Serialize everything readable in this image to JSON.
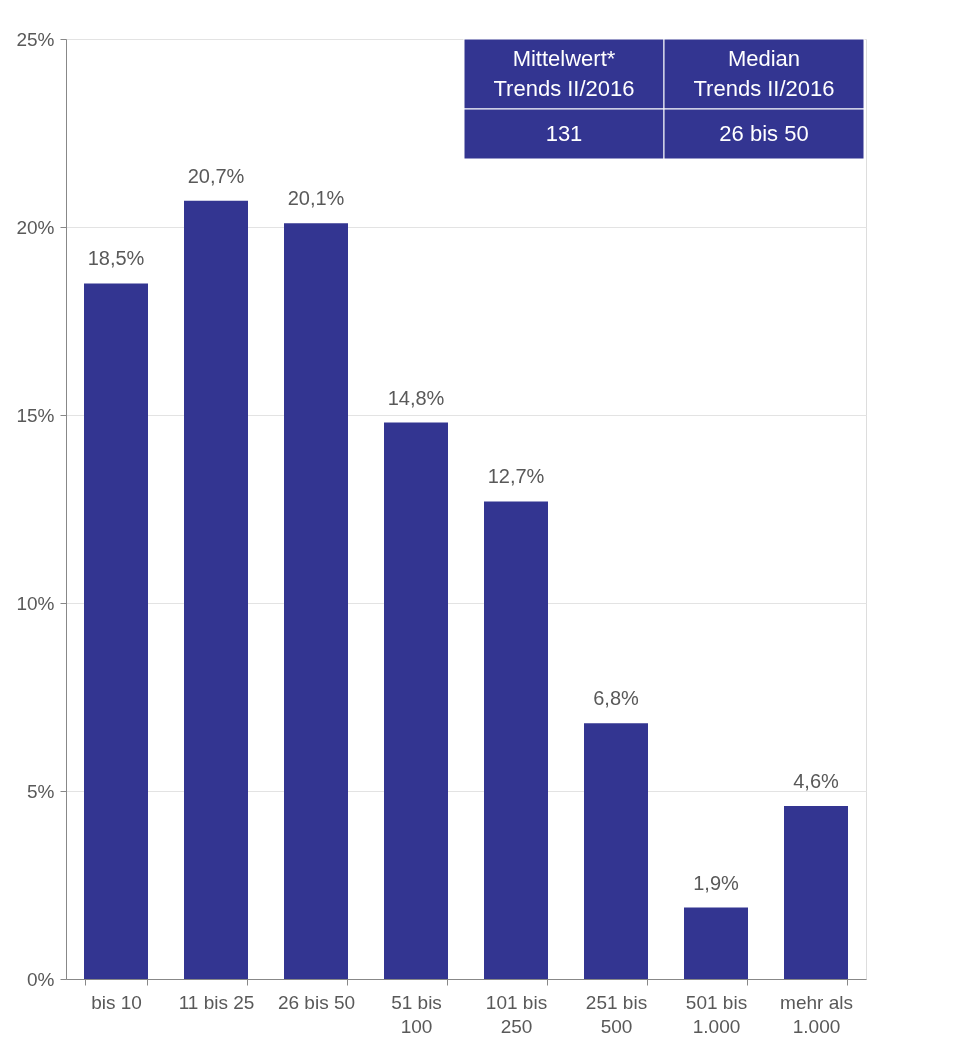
{
  "chart_data": {
    "type": "bar",
    "categories": [
      "bis 10",
      "11 bis 25",
      "26 bis 50",
      "51 bis\n100",
      "101 bis\n250",
      "251 bis\n500",
      "501 bis\n1.000",
      "mehr als\n1.000"
    ],
    "values": [
      18.5,
      20.7,
      20.1,
      14.8,
      12.7,
      6.8,
      1.9,
      4.6
    ],
    "value_labels": [
      "18,5%",
      "20,7%",
      "20,1%",
      "14,8%",
      "12,7%",
      "6,8%",
      "1,9%",
      "4,6%"
    ],
    "color": "#333591",
    "ylim": [
      0,
      25
    ],
    "yticks": [
      {
        "value": 0,
        "label": "0%"
      },
      {
        "value": 5,
        "label": "5%"
      },
      {
        "value": 10,
        "label": "10%"
      },
      {
        "value": 15,
        "label": "15%"
      },
      {
        "value": 20,
        "label": "20%"
      },
      {
        "value": 25,
        "label": "25%"
      }
    ],
    "grid": "y",
    "annotations": [
      "Mittelwert*\nTrends II/2016",
      "Median\nTrends II/2016",
      "131",
      "26 bis 50"
    ]
  }
}
